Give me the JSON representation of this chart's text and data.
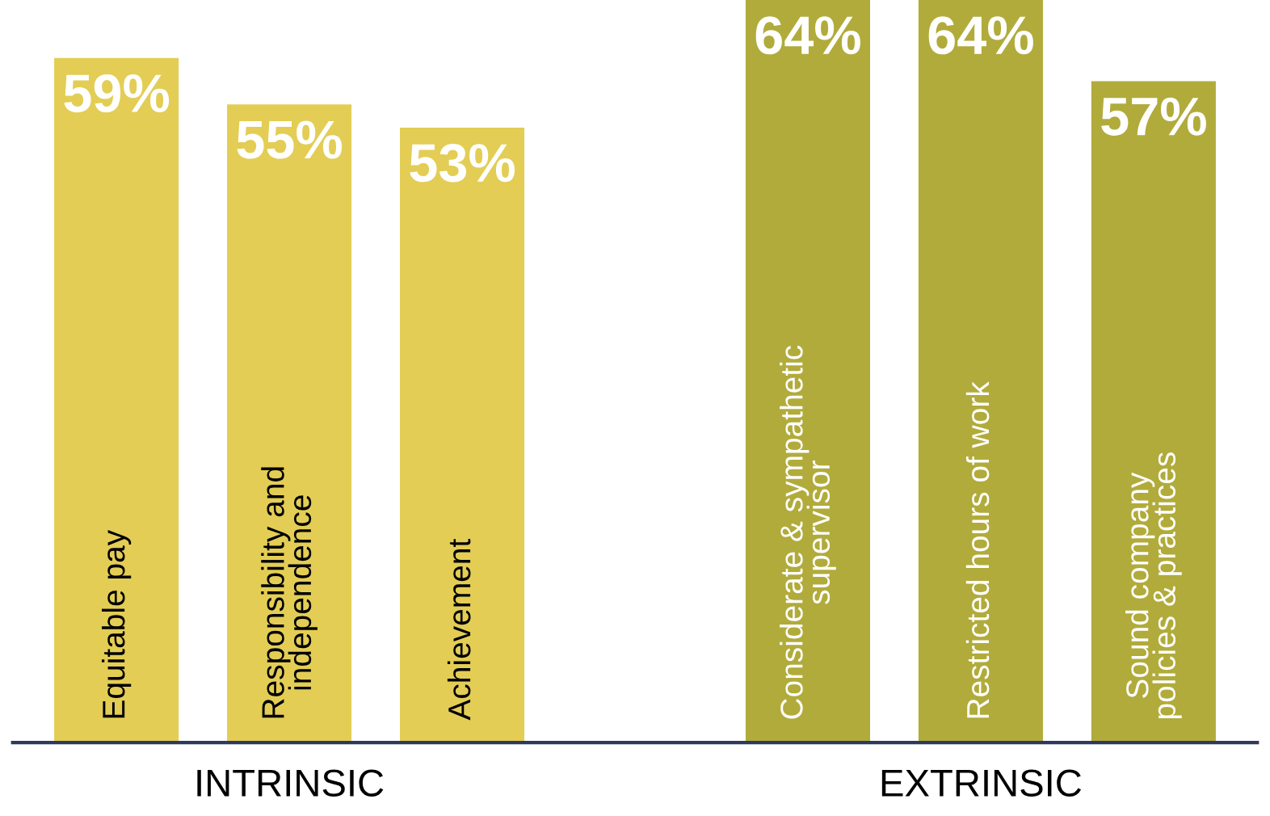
{
  "chart_data": {
    "type": "bar",
    "categories": [
      "Equitable pay",
      "Responsibility and\nindependence",
      "Achievement",
      null,
      "Considerate & sympathetic\nsupervisor",
      "Restricted hours of work",
      "Sound company\npolicies & practices"
    ],
    "values": [
      59,
      55,
      53,
      null,
      64,
      64,
      57
    ],
    "colors": [
      "#e3cd55",
      "#e3cd55",
      "#e3cd55",
      "#ffffff",
      "#b1ab3b",
      "#b1ab3b",
      "#b1ab3b"
    ],
    "value_labels": [
      "59%",
      "55%",
      "53%",
      null,
      "64%",
      "64%",
      "57%"
    ],
    "annotations": [
      "INTRINSIC",
      "EXTRINSIC"
    ]
  }
}
